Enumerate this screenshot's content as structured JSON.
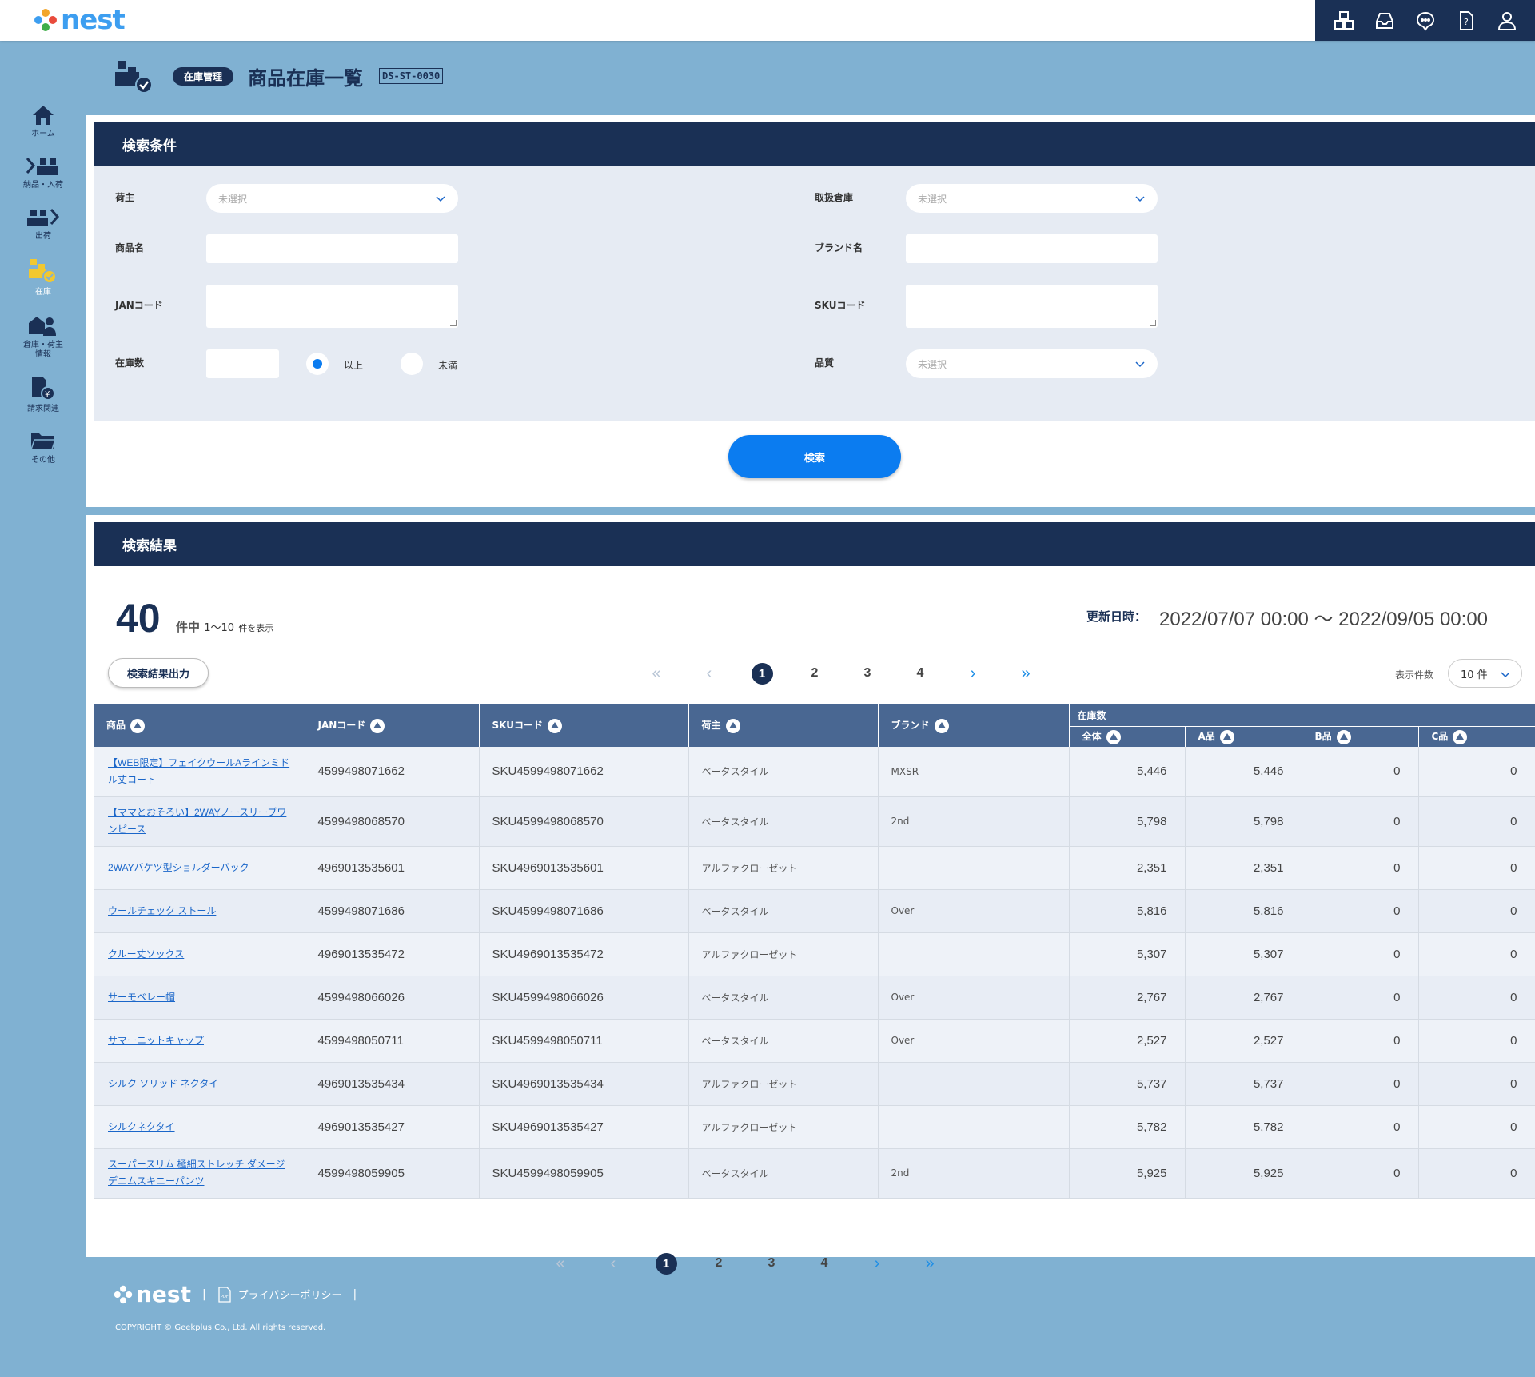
{
  "app": {
    "name": "nest"
  },
  "header": {
    "category": "在庫管理",
    "title": "商品在庫一覧",
    "code": "DS-ST-0030"
  },
  "sidebar": {
    "items": [
      {
        "label": "ホーム",
        "icon": "home-icon"
      },
      {
        "label": "納品・入荷",
        "icon": "inbound-icon"
      },
      {
        "label": "出荷",
        "icon": "outbound-icon"
      },
      {
        "label": "在庫",
        "icon": "inventory-icon"
      },
      {
        "label": "倉庫・荷主",
        "label2": "情報",
        "icon": "warehouse-owner-icon"
      },
      {
        "label": "請求関連",
        "icon": "billing-icon"
      },
      {
        "label": "その他",
        "icon": "folder-icon"
      }
    ]
  },
  "search": {
    "heading": "検索条件",
    "owner_label": "荷主",
    "owner_placeholder": "未選択",
    "warehouse_label": "取扱倉庫",
    "warehouse_placeholder": "未選択",
    "product_label": "商品名",
    "brand_label": "ブランド名",
    "jan_label": "JANコード",
    "sku_label": "SKUコード",
    "stock_label": "在庫数",
    "radio_gte": "以上",
    "radio_lt": "未満",
    "quality_label": "品質",
    "quality_placeholder": "未選択",
    "button": "検索"
  },
  "results": {
    "heading": "検索結果",
    "total": "40",
    "range_prefix": "件中",
    "range": "1～10",
    "range_suffix": "件を表示",
    "updated_label": "更新日時：",
    "updated_value": "2022/07/07 00:00 ～ 2022/09/05 00:00",
    "export_button": "検索結果出力",
    "per_page_label": "表示件数",
    "per_page_value": "10 件",
    "pages": [
      "1",
      "2",
      "3",
      "4"
    ],
    "current_page": "1",
    "columns": {
      "product": "商品",
      "jan": "JANコード",
      "sku": "SKUコード",
      "owner": "荷主",
      "brand": "ブランド",
      "stock": "在庫数",
      "total": "全体",
      "a": "A品",
      "b": "B品",
      "c": "C品"
    },
    "rows": [
      {
        "product": "【WEB限定】フェイクウールAラインミドル丈コート",
        "jan": "4599498071662",
        "sku": "SKU4599498071662",
        "owner": "ベータスタイル",
        "brand": "MXSR",
        "total": "5,446",
        "a": "5,446",
        "b": "0",
        "c": "0"
      },
      {
        "product": "【ママとおそろい】2WAYノースリーブワンピース",
        "jan": "4599498068570",
        "sku": "SKU4599498068570",
        "owner": "ベータスタイル",
        "brand": "2nd",
        "total": "5,798",
        "a": "5,798",
        "b": "0",
        "c": "0"
      },
      {
        "product": "2WAYバケツ型ショルダーバック",
        "jan": "4969013535601",
        "sku": "SKU4969013535601",
        "owner": "アルファクローゼット",
        "brand": "",
        "total": "2,351",
        "a": "2,351",
        "b": "0",
        "c": "0"
      },
      {
        "product": "ウールチェック ストール",
        "jan": "4599498071686",
        "sku": "SKU4599498071686",
        "owner": "ベータスタイル",
        "brand": "Over",
        "total": "5,816",
        "a": "5,816",
        "b": "0",
        "c": "0"
      },
      {
        "product": "クルー丈ソックス",
        "jan": "4969013535472",
        "sku": "SKU4969013535472",
        "owner": "アルファクローゼット",
        "brand": "",
        "total": "5,307",
        "a": "5,307",
        "b": "0",
        "c": "0"
      },
      {
        "product": "サーモベレー帽",
        "jan": "4599498066026",
        "sku": "SKU4599498066026",
        "owner": "ベータスタイル",
        "brand": "Over",
        "total": "2,767",
        "a": "2,767",
        "b": "0",
        "c": "0"
      },
      {
        "product": "サマーニットキャップ",
        "jan": "4599498050711",
        "sku": "SKU4599498050711",
        "owner": "ベータスタイル",
        "brand": "Over",
        "total": "2,527",
        "a": "2,527",
        "b": "0",
        "c": "0"
      },
      {
        "product": "シルク ソリッド ネクタイ",
        "jan": "4969013535434",
        "sku": "SKU4969013535434",
        "owner": "アルファクローゼット",
        "brand": "",
        "total": "5,737",
        "a": "5,737",
        "b": "0",
        "c": "0"
      },
      {
        "product": "シルクネクタイ",
        "jan": "4969013535427",
        "sku": "SKU4969013535427",
        "owner": "アルファクローゼット",
        "brand": "",
        "total": "5,782",
        "a": "5,782",
        "b": "0",
        "c": "0"
      },
      {
        "product": "スーパースリム 極細ストレッチ ダメージデニムスキニーパンツ",
        "jan": "4599498059905",
        "sku": "SKU4599498059905",
        "owner": "ベータスタイル",
        "brand": "2nd",
        "total": "5,925",
        "a": "5,925",
        "b": "0",
        "c": "0"
      }
    ]
  },
  "footer": {
    "privacy": "プライバシーポリシー",
    "copyright": "COPYRIGHT © Geekplus Co., Ltd. All rights reserved."
  },
  "colors": {
    "navy": "#1a3055",
    "background": "#80b1d2",
    "accent_blue": "#0b7cf0",
    "table_header": "#496792",
    "inventory_active": "#f2c830"
  }
}
